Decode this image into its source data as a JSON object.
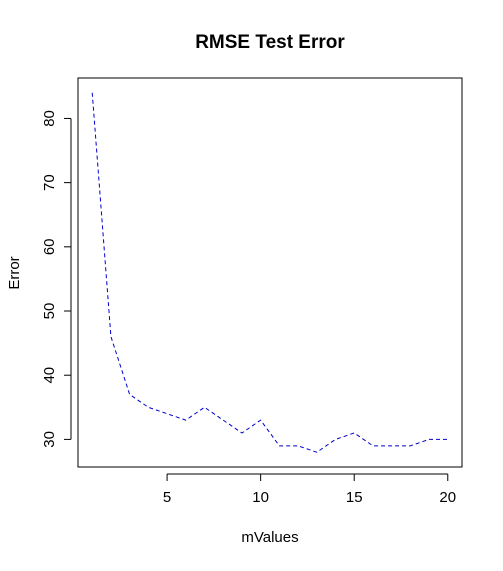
{
  "chart_data": {
    "type": "line",
    "title": "RMSE Test Error",
    "xlabel": "mValues",
    "ylabel": "Error",
    "x": [
      1,
      2,
      3,
      4,
      5,
      6,
      7,
      8,
      9,
      10,
      11,
      12,
      13,
      14,
      15,
      16,
      17,
      18,
      19,
      20
    ],
    "series": [
      {
        "values": [
          84,
          46,
          37,
          35,
          34,
          33,
          35,
          33,
          31,
          33,
          29,
          29,
          28,
          30,
          31,
          29,
          29,
          29,
          30,
          30
        ],
        "color": "#0000cc",
        "line_style": "dashed"
      }
    ],
    "xlim": [
      0.24,
      20.76
    ],
    "ylim": [
      25.7,
      86.3
    ],
    "xticks": [
      5,
      10,
      15,
      20
    ],
    "yticks": [
      30,
      40,
      50,
      60,
      70,
      80
    ],
    "grid": false,
    "legend": "none"
  }
}
